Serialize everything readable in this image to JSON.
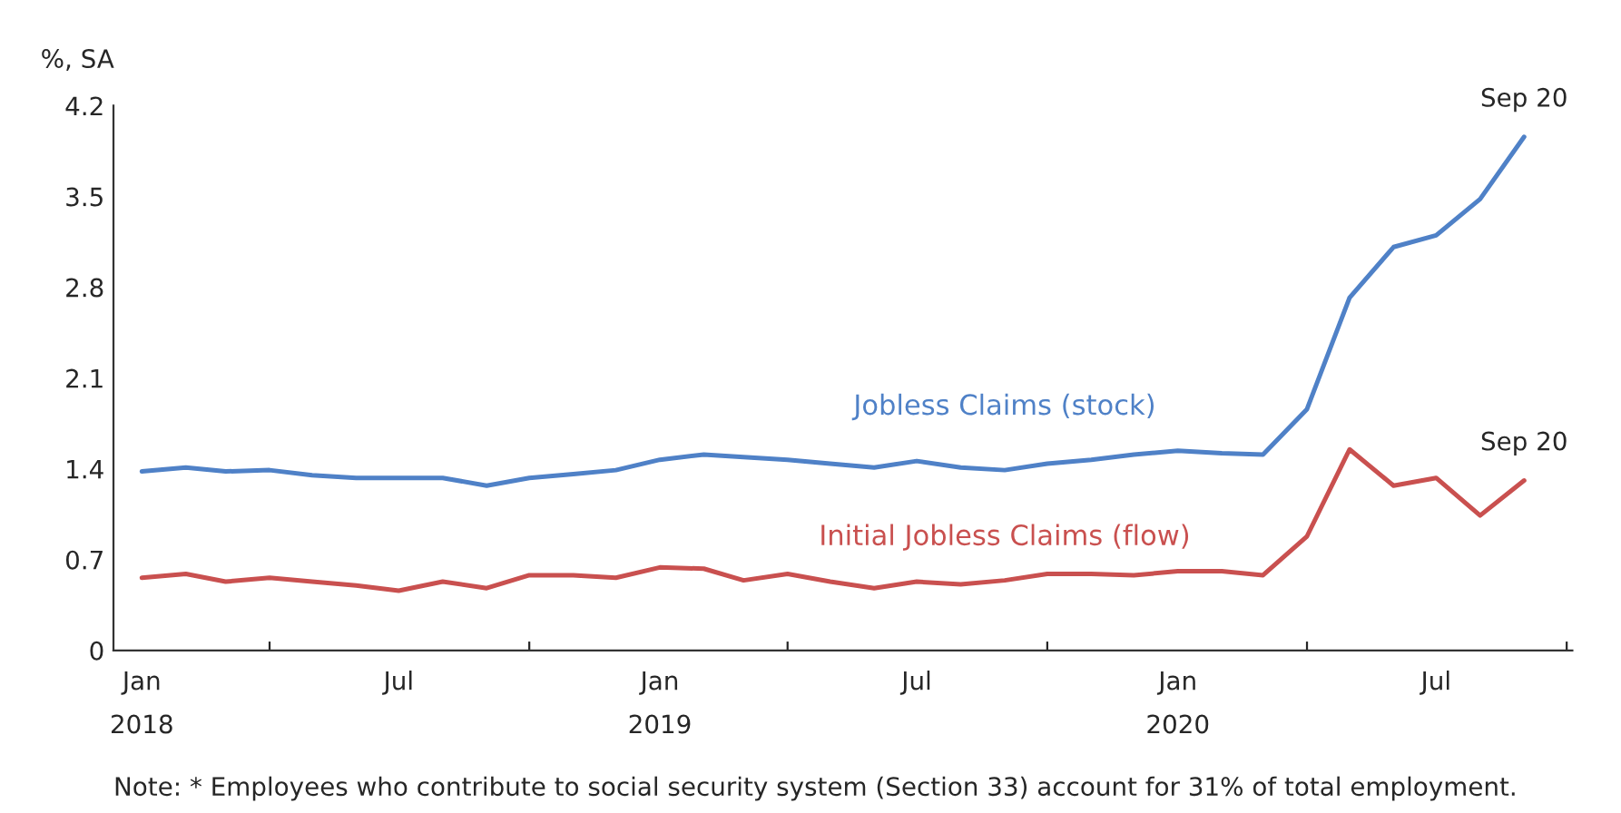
{
  "chart_data": {
    "type": "line",
    "ylabel": "%, SA",
    "x": [
      "2018-01",
      "2018-02",
      "2018-03",
      "2018-04",
      "2018-05",
      "2018-06",
      "2018-07",
      "2018-08",
      "2018-09",
      "2018-10",
      "2018-11",
      "2018-12",
      "2019-01",
      "2019-02",
      "2019-03",
      "2019-04",
      "2019-05",
      "2019-06",
      "2019-07",
      "2019-08",
      "2019-09",
      "2019-10",
      "2019-11",
      "2019-12",
      "2020-01",
      "2020-02",
      "2020-03",
      "2020-04",
      "2020-05",
      "2020-06",
      "2020-07",
      "2020-08",
      "2020-09"
    ],
    "series": [
      {
        "name": "Jobless Claims (stock)",
        "color": "#4f81c7",
        "values": [
          1.38,
          1.41,
          1.38,
          1.39,
          1.35,
          1.33,
          1.33,
          1.33,
          1.27,
          1.33,
          1.36,
          1.39,
          1.47,
          1.51,
          1.49,
          1.47,
          1.44,
          1.41,
          1.46,
          1.41,
          1.39,
          1.44,
          1.47,
          1.51,
          1.54,
          1.52,
          1.51,
          1.86,
          2.72,
          3.11,
          3.2,
          3.48,
          3.96
        ]
      },
      {
        "name": "Initial Jobless Claims (flow)",
        "color": "#c9504f",
        "values": [
          0.56,
          0.59,
          0.53,
          0.56,
          0.53,
          0.5,
          0.46,
          0.53,
          0.48,
          0.58,
          0.58,
          0.56,
          0.64,
          0.63,
          0.54,
          0.59,
          0.53,
          0.48,
          0.53,
          0.51,
          0.54,
          0.59,
          0.59,
          0.58,
          0.61,
          0.61,
          0.58,
          0.88,
          1.55,
          1.27,
          1.33,
          1.04,
          1.31
        ]
      }
    ],
    "xlim": [
      "2017-12-12",
      "2020-10-05"
    ],
    "xticks": [
      {
        "value": "2018-01",
        "label": "Jan\n2018"
      },
      {
        "value": "2018-04",
        "label": null
      },
      {
        "value": "2018-07",
        "label": "Jul"
      },
      {
        "value": "2018-10",
        "label": null
      },
      {
        "value": "2019-01",
        "label": "Jan\n2019"
      },
      {
        "value": "2019-04",
        "label": null
      },
      {
        "value": "2019-07",
        "label": "Jul"
      },
      {
        "value": "2019-10",
        "label": null
      },
      {
        "value": "2020-01",
        "label": "Jan\n2020"
      },
      {
        "value": "2020-04",
        "label": null
      },
      {
        "value": "2020-07",
        "label": "Jul"
      },
      {
        "value": "2020-10",
        "label": null
      }
    ],
    "ylim": [
      0,
      4.2
    ],
    "yticks": [
      0,
      0.7,
      1.4,
      2.1,
      2.8,
      3.5,
      4.2
    ],
    "grid": false,
    "legend": false,
    "marker": "none",
    "line_style": "solid",
    "annotations": [
      {
        "text": "Sep 20",
        "x": "2020-09",
        "y": 3.96
      },
      {
        "text": "Sep 20",
        "x": "2020-09",
        "y": 1.31
      },
      "Note: * Employees who contribute to social security system (Section 33) account for 31% of total employment."
    ]
  }
}
